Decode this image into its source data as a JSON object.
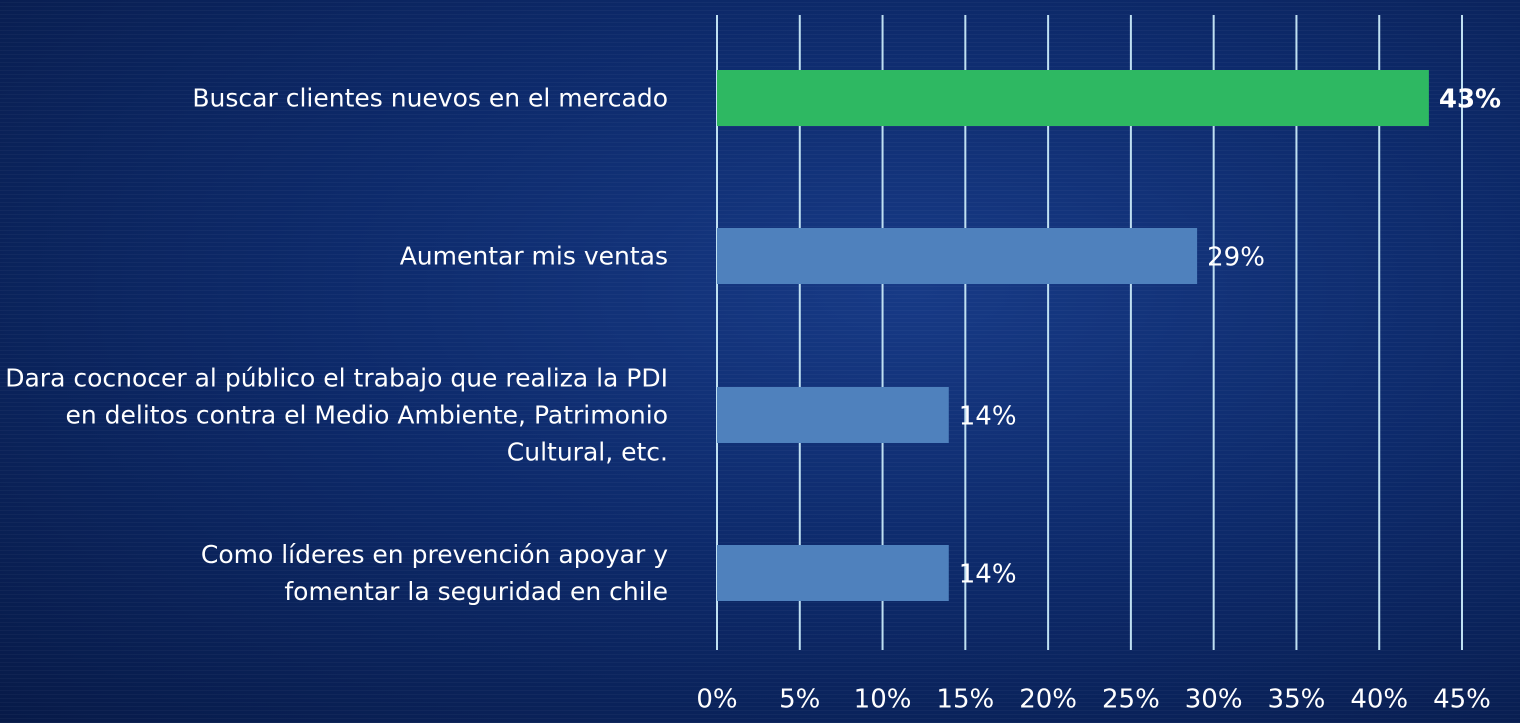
{
  "chart_data": {
    "type": "bar",
    "orientation": "horizontal",
    "categories": [
      "Buscar clientes nuevos en el mercado",
      "Aumentar mis ventas",
      "Dara cocnocer al público el trabajo que realiza la PDI en delitos contra el Medio Ambiente, Patrimonio Cultural, etc.",
      "Como líderes en prevención apoyar y fomentar la seguridad en chile"
    ],
    "values": [
      43,
      29,
      14,
      14
    ],
    "value_labels": [
      "43%",
      "29%",
      "14%",
      "14%"
    ],
    "colors": [
      "#2eb862",
      "#4f81bd",
      "#4f81bd",
      "#4f81bd"
    ],
    "xlim": [
      0,
      45
    ],
    "xticks": [
      {
        "value": 0,
        "label": "0%"
      },
      {
        "value": 5,
        "label": "5%"
      },
      {
        "value": 10,
        "label": "10%"
      },
      {
        "value": 15,
        "label": "15%"
      },
      {
        "value": 20,
        "label": "20%"
      },
      {
        "value": 25,
        "label": "25%"
      },
      {
        "value": 30,
        "label": "30%"
      },
      {
        "value": 35,
        "label": "35%"
      },
      {
        "value": 40,
        "label": "40%"
      },
      {
        "value": 45,
        "label": "45%"
      }
    ],
    "grid": true
  }
}
